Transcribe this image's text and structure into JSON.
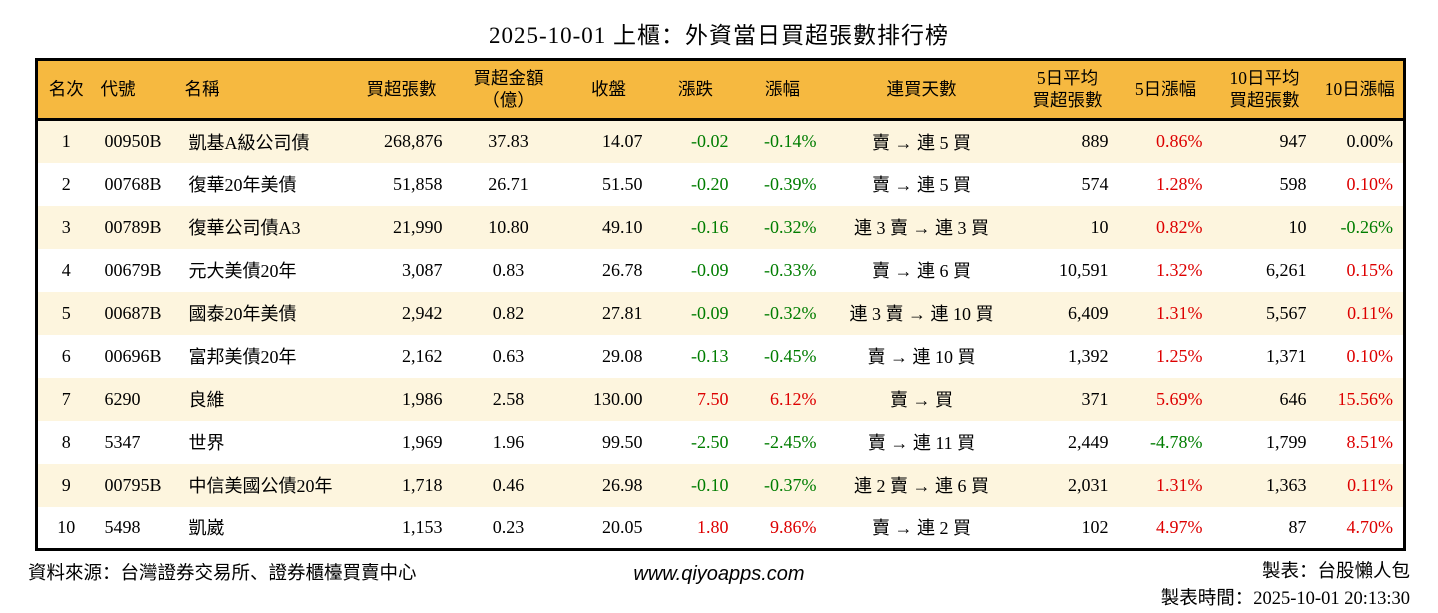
{
  "title": "2025-10-01 上櫃：外資當日買超張數排行榜",
  "colors": {
    "up": "#dd0000",
    "down": "#007d00",
    "flat": "#000000",
    "header_bg": "#f6b940",
    "row_alt_bg": "#fdf5de",
    "border": "#000000"
  },
  "table": {
    "columns": [
      {
        "key": "rank",
        "label": "名次",
        "align": "center"
      },
      {
        "key": "code",
        "label": "代號",
        "align": "left"
      },
      {
        "key": "name",
        "label": "名稱",
        "align": "left"
      },
      {
        "key": "vol",
        "label": "買超張數",
        "align": "right"
      },
      {
        "key": "amt",
        "label": "買超金額\n（億）",
        "align": "center"
      },
      {
        "key": "close",
        "label": "收盤",
        "align": "right"
      },
      {
        "key": "chg",
        "label": "漲跌",
        "align": "right"
      },
      {
        "key": "chg_pct",
        "label": "漲幅",
        "align": "right"
      },
      {
        "key": "streak",
        "label": "連買天數",
        "align": "center"
      },
      {
        "key": "avg5",
        "label": "5日平均\n買超張數",
        "align": "right"
      },
      {
        "key": "pct5",
        "label": "5日漲幅",
        "align": "right"
      },
      {
        "key": "avg10",
        "label": "10日平均\n買超張數",
        "align": "right"
      },
      {
        "key": "pct10",
        "label": "10日漲幅",
        "align": "right"
      }
    ],
    "rows": [
      {
        "values": {
          "rank": "1",
          "code": "00950B",
          "name": "凱基A級公司債",
          "vol": "268,876",
          "amt": "37.83",
          "close": "14.07",
          "chg": "-0.02",
          "chg_pct": "-0.14%",
          "streak": "賣 → 連 5 買",
          "avg5": "889",
          "pct5": "0.86%",
          "avg10": "947",
          "pct10": "0.00%"
        },
        "cell_colors": {
          "chg": "down",
          "chg_pct": "down",
          "pct5": "up",
          "pct10": "flat"
        }
      },
      {
        "values": {
          "rank": "2",
          "code": "00768B",
          "name": "復華20年美債",
          "vol": "51,858",
          "amt": "26.71",
          "close": "51.50",
          "chg": "-0.20",
          "chg_pct": "-0.39%",
          "streak": "賣 → 連 5 買",
          "avg5": "574",
          "pct5": "1.28%",
          "avg10": "598",
          "pct10": "0.10%"
        },
        "cell_colors": {
          "chg": "down",
          "chg_pct": "down",
          "pct5": "up",
          "pct10": "up"
        }
      },
      {
        "values": {
          "rank": "3",
          "code": "00789B",
          "name": "復華公司債A3",
          "vol": "21,990",
          "amt": "10.80",
          "close": "49.10",
          "chg": "-0.16",
          "chg_pct": "-0.32%",
          "streak": "連 3 賣 → 連 3 買",
          "avg5": "10",
          "pct5": "0.82%",
          "avg10": "10",
          "pct10": "-0.26%"
        },
        "cell_colors": {
          "chg": "down",
          "chg_pct": "down",
          "pct5": "up",
          "pct10": "down"
        }
      },
      {
        "values": {
          "rank": "4",
          "code": "00679B",
          "name": "元大美債20年",
          "vol": "3,087",
          "amt": "0.83",
          "close": "26.78",
          "chg": "-0.09",
          "chg_pct": "-0.33%",
          "streak": "賣 → 連 6 買",
          "avg5": "10,591",
          "pct5": "1.32%",
          "avg10": "6,261",
          "pct10": "0.15%"
        },
        "cell_colors": {
          "chg": "down",
          "chg_pct": "down",
          "pct5": "up",
          "pct10": "up"
        }
      },
      {
        "values": {
          "rank": "5",
          "code": "00687B",
          "name": "國泰20年美債",
          "vol": "2,942",
          "amt": "0.82",
          "close": "27.81",
          "chg": "-0.09",
          "chg_pct": "-0.32%",
          "streak": "連 3 賣 → 連 10 買",
          "avg5": "6,409",
          "pct5": "1.31%",
          "avg10": "5,567",
          "pct10": "0.11%"
        },
        "cell_colors": {
          "chg": "down",
          "chg_pct": "down",
          "pct5": "up",
          "pct10": "up"
        }
      },
      {
        "values": {
          "rank": "6",
          "code": "00696B",
          "name": "富邦美債20年",
          "vol": "2,162",
          "amt": "0.63",
          "close": "29.08",
          "chg": "-0.13",
          "chg_pct": "-0.45%",
          "streak": "賣 → 連 10 買",
          "avg5": "1,392",
          "pct5": "1.25%",
          "avg10": "1,371",
          "pct10": "0.10%"
        },
        "cell_colors": {
          "chg": "down",
          "chg_pct": "down",
          "pct5": "up",
          "pct10": "up"
        }
      },
      {
        "values": {
          "rank": "7",
          "code": "6290",
          "name": "良維",
          "vol": "1,986",
          "amt": "2.58",
          "close": "130.00",
          "chg": "7.50",
          "chg_pct": "6.12%",
          "streak": "賣 → 買",
          "avg5": "371",
          "pct5": "5.69%",
          "avg10": "646",
          "pct10": "15.56%"
        },
        "cell_colors": {
          "chg": "up",
          "chg_pct": "up",
          "pct5": "up",
          "pct10": "up"
        }
      },
      {
        "values": {
          "rank": "8",
          "code": "5347",
          "name": "世界",
          "vol": "1,969",
          "amt": "1.96",
          "close": "99.50",
          "chg": "-2.50",
          "chg_pct": "-2.45%",
          "streak": "賣 → 連 11 買",
          "avg5": "2,449",
          "pct5": "-4.78%",
          "avg10": "1,799",
          "pct10": "8.51%"
        },
        "cell_colors": {
          "chg": "down",
          "chg_pct": "down",
          "pct5": "down",
          "pct10": "up"
        }
      },
      {
        "values": {
          "rank": "9",
          "code": "00795B",
          "name": "中信美國公債20年",
          "vol": "1,718",
          "amt": "0.46",
          "close": "26.98",
          "chg": "-0.10",
          "chg_pct": "-0.37%",
          "streak": "連 2 賣 → 連 6 買",
          "avg5": "2,031",
          "pct5": "1.31%",
          "avg10": "1,363",
          "pct10": "0.11%"
        },
        "cell_colors": {
          "chg": "down",
          "chg_pct": "down",
          "pct5": "up",
          "pct10": "up"
        }
      },
      {
        "values": {
          "rank": "10",
          "code": "5498",
          "name": "凱崴",
          "vol": "1,153",
          "amt": "0.23",
          "close": "20.05",
          "chg": "1.80",
          "chg_pct": "9.86%",
          "streak": "賣 → 連 2 買",
          "avg5": "102",
          "pct5": "4.97%",
          "avg10": "87",
          "pct10": "4.70%"
        },
        "cell_colors": {
          "chg": "up",
          "chg_pct": "up",
          "pct5": "up",
          "pct10": "up"
        }
      }
    ]
  },
  "footer": {
    "source": "資料來源：台灣證券交易所、證券櫃檯買賣中心",
    "website": "www.qiyoapps.com",
    "maker": "製表：台股懶人包",
    "made_time": "製表時間：2025-10-01 20:13:30"
  }
}
